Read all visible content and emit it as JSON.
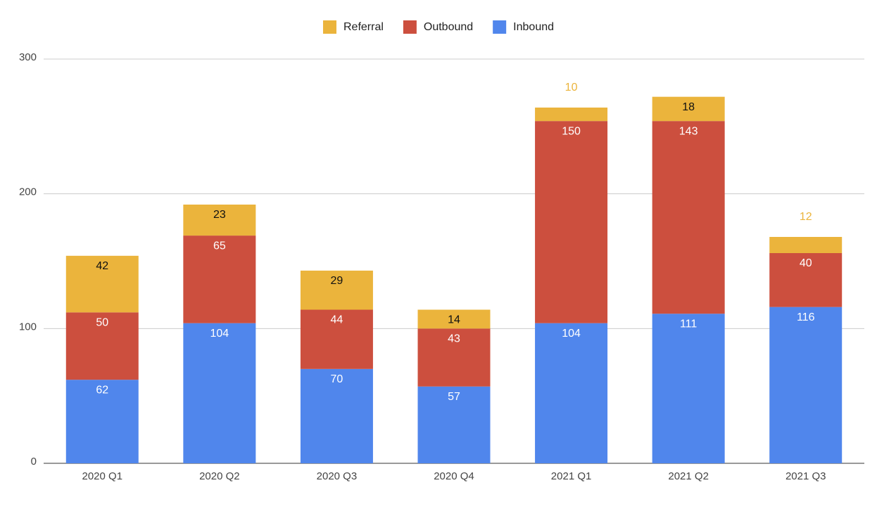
{
  "chart_data": {
    "type": "stacked_bar",
    "categories": [
      "2020 Q1",
      "2020 Q2",
      "2020 Q3",
      "2020 Q4",
      "2021 Q1",
      "2021 Q2",
      "2021 Q3"
    ],
    "series": [
      {
        "name": "Inbound",
        "color": "#5086ec",
        "values": [
          62,
          104,
          70,
          57,
          104,
          111,
          116
        ]
      },
      {
        "name": "Outbound",
        "color": "#cc4f3e",
        "values": [
          50,
          65,
          44,
          43,
          150,
          143,
          40
        ]
      },
      {
        "name": "Referral",
        "color": "#ebb43c",
        "values": [
          42,
          23,
          29,
          14,
          10,
          18,
          12
        ]
      }
    ],
    "legend_order": [
      "Referral",
      "Outbound",
      "Inbound"
    ],
    "ylim": [
      0,
      300
    ],
    "yticks": [
      0,
      100,
      200,
      300
    ],
    "grid": true
  }
}
